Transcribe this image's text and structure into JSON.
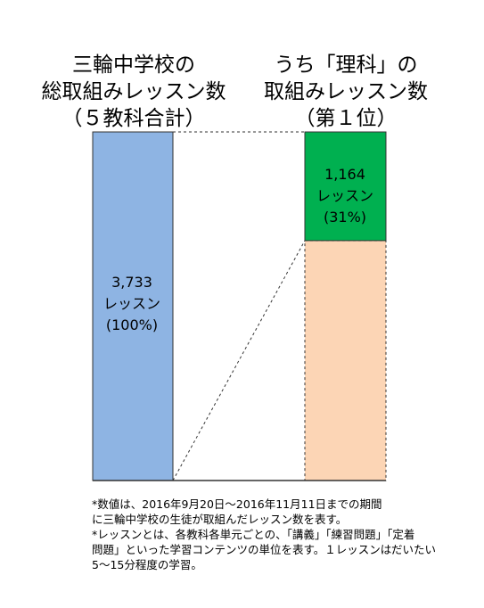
{
  "header_left": [
    "三輪中学校の",
    "総取組みレッスン数",
    "（５教科合計）"
  ],
  "header_right": [
    "うち「理科」の",
    "取組みレッスン数",
    "（第１位）"
  ],
  "chart_data": {
    "type": "bar",
    "categories": [
      "三輪中学校の総取組みレッスン数（５教科合計）",
      "うち「理科」の取組みレッスン数（第１位）"
    ],
    "total": {
      "value": 3733,
      "percent": 100,
      "label": [
        "3,733",
        "レッスン",
        "(100%)"
      ],
      "color": "#8eb4e3"
    },
    "science": {
      "value": 1164,
      "percent": 31,
      "label": [
        "1,164",
        "レッスン",
        "(31%)"
      ],
      "color": "#00b050"
    },
    "remainder_color": "#fcd5b5"
  },
  "notes": [
    "*数値は、2016年9月20日～2016年11月11日までの期間",
    "に三輪中学校の生徒が取組んだレッスン数を表す。",
    "*レッスンとは、各教科各単元ごとの、「講義」「練習問題」「定着",
    "問題」といった学習コンテンツの単位を表す。１レッスンはだいたい",
    "5～15分程度の学習。"
  ]
}
